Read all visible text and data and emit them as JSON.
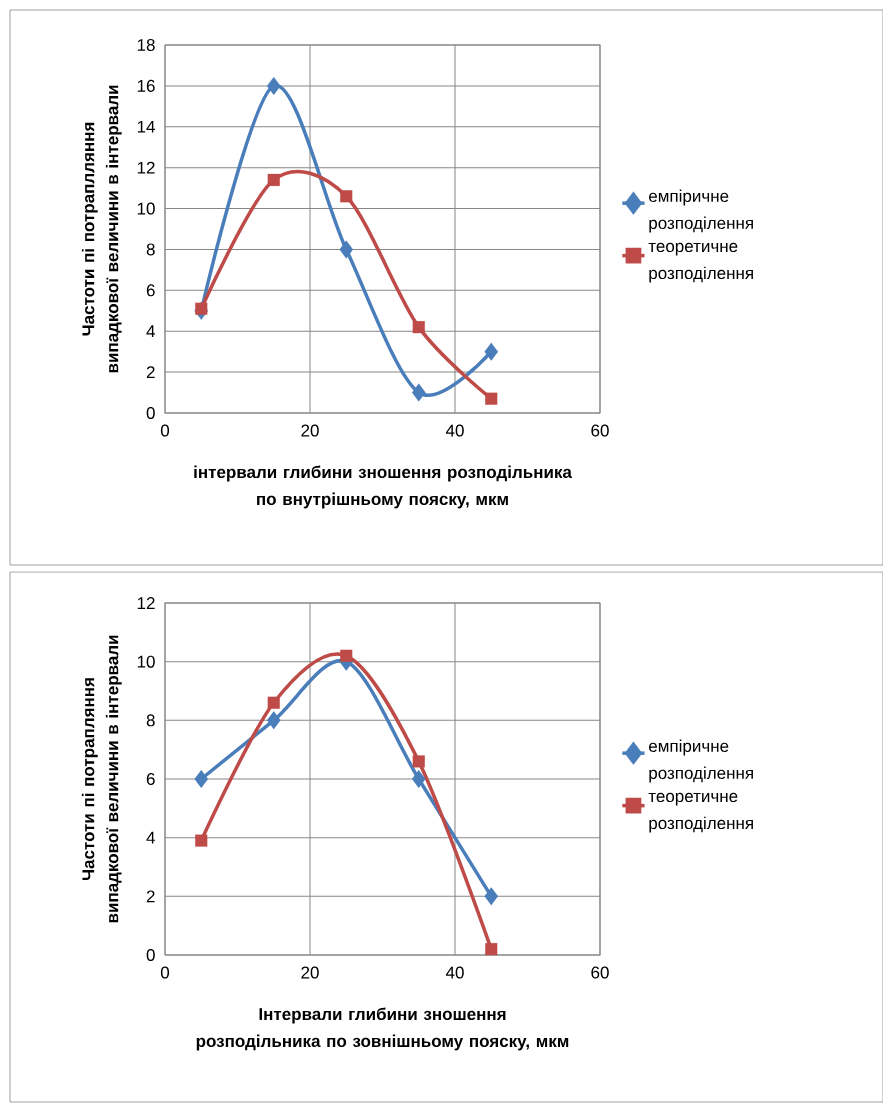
{
  "chart_data": [
    {
      "type": "line",
      "xlabel": "інтервали глибини зношення розподільника по внутрішньому пояску, мкм",
      "ylabel": "Частоти пі потраплляння випадкової величини в інтервали",
      "x": [
        5,
        15,
        25,
        35,
        45
      ],
      "series": [
        {
          "name": "емпіричне розподілення",
          "color": "#4a7ebb",
          "marker": "diamond",
          "values": [
            5,
            16,
            8,
            1,
            3
          ]
        },
        {
          "name": "теоретичне розподілення",
          "color": "#be4b48",
          "marker": "square",
          "values": [
            5.1,
            11.4,
            10.6,
            4.2,
            0.7
          ]
        }
      ],
      "xlim": [
        0,
        60
      ],
      "xticks": [
        0,
        20,
        40,
        60
      ],
      "ylim": [
        0,
        18
      ],
      "yticks": [
        0,
        2,
        4,
        6,
        8,
        10,
        12,
        14,
        16,
        18
      ],
      "grid": true,
      "legend": "right",
      "line_style": "solid"
    },
    {
      "type": "line",
      "xlabel": "Інтервали глибини зношення розподільника по зовнішньому пояску, мкм",
      "ylabel": "Частоти  пі  потрапляння випадкової величини в інтервали",
      "x": [
        5,
        15,
        25,
        35,
        45
      ],
      "series": [
        {
          "name": "емпіричне розподілення",
          "color": "#4a7ebb",
          "marker": "diamond",
          "values": [
            6,
            8,
            10,
            6,
            2
          ]
        },
        {
          "name": "теоретичне розподілення",
          "color": "#be4b48",
          "marker": "square",
          "values": [
            3.9,
            8.6,
            10.2,
            6.6,
            0.2
          ]
        }
      ],
      "xlim": [
        0,
        60
      ],
      "xticks": [
        0,
        20,
        40,
        60
      ],
      "ylim": [
        0,
        12
      ],
      "yticks": [
        0,
        2,
        4,
        6,
        8,
        10,
        12
      ],
      "grid": true,
      "legend": "right",
      "line_style": "solid"
    }
  ]
}
